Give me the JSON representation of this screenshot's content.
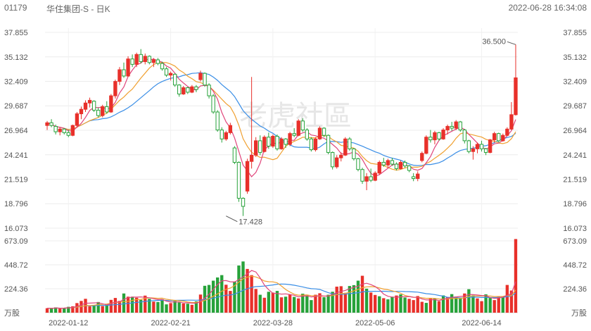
{
  "header": {
    "code": "01179",
    "name": "华住集团-S - 日K",
    "datetime": "2022-06-28 16:34:08"
  },
  "watermark": "老虎社區",
  "colors": {
    "up": "#e8302a",
    "down": "#27a23a",
    "ma5": "#e0457b",
    "ma10": "#f0a030",
    "ma20": "#3a8ee6",
    "vol_ma5": "#f0a030",
    "vol_ma10": "#3a8ee6",
    "vol_ma20": "#e0457b"
  },
  "chart_data": [
    {
      "type": "candlestick",
      "yticks": [
        "37.855",
        "35.132",
        "32.409",
        "29.687",
        "26.964",
        "24.241",
        "21.519",
        "18.796",
        "16.073"
      ],
      "ylim": [
        16.073,
        37.855
      ],
      "xticks": [
        {
          "index": 5,
          "label": "2022-01-12"
        },
        {
          "index": 29,
          "label": "2022-02-21"
        },
        {
          "index": 53,
          "label": "2022-03-28"
        },
        {
          "index": 77,
          "label": "2022-05-06"
        },
        {
          "index": 102,
          "label": "2022-06-14"
        }
      ],
      "annotations": [
        {
          "index": 110,
          "value": 36.5,
          "label": "36.500"
        },
        {
          "index": 42,
          "value": 17.428,
          "label": "17.428"
        }
      ],
      "candles": [
        {
          "o": 27.5,
          "h": 28.0,
          "l": 27.0,
          "c": 27.8
        },
        {
          "o": 27.8,
          "h": 28.2,
          "l": 27.3,
          "c": 27.5
        },
        {
          "o": 27.4,
          "h": 27.6,
          "l": 26.5,
          "c": 26.8
        },
        {
          "o": 26.8,
          "h": 27.3,
          "l": 26.4,
          "c": 27.1
        },
        {
          "o": 27.1,
          "h": 27.2,
          "l": 26.5,
          "c": 26.7
        },
        {
          "o": 26.7,
          "h": 27.0,
          "l": 26.2,
          "c": 26.4
        },
        {
          "o": 26.4,
          "h": 27.6,
          "l": 26.3,
          "c": 27.5
        },
        {
          "o": 27.5,
          "h": 29.0,
          "l": 27.3,
          "c": 28.8
        },
        {
          "o": 28.8,
          "h": 29.6,
          "l": 28.2,
          "c": 29.3
        },
        {
          "o": 29.3,
          "h": 30.3,
          "l": 29.0,
          "c": 30.0
        },
        {
          "o": 30.0,
          "h": 30.6,
          "l": 29.5,
          "c": 30.3
        },
        {
          "o": 30.2,
          "h": 30.3,
          "l": 29.0,
          "c": 29.2
        },
        {
          "o": 29.2,
          "h": 29.5,
          "l": 28.4,
          "c": 28.6
        },
        {
          "o": 28.6,
          "h": 29.8,
          "l": 28.4,
          "c": 29.6
        },
        {
          "o": 29.6,
          "h": 30.2,
          "l": 28.8,
          "c": 29.0
        },
        {
          "o": 29.0,
          "h": 31.0,
          "l": 28.9,
          "c": 30.8
        },
        {
          "o": 30.8,
          "h": 32.6,
          "l": 30.5,
          "c": 32.4
        },
        {
          "o": 32.4,
          "h": 34.0,
          "l": 32.0,
          "c": 33.7
        },
        {
          "o": 33.7,
          "h": 34.5,
          "l": 32.8,
          "c": 33.0
        },
        {
          "o": 33.0,
          "h": 35.2,
          "l": 32.9,
          "c": 34.9
        },
        {
          "o": 34.9,
          "h": 35.4,
          "l": 34.0,
          "c": 34.3
        },
        {
          "o": 34.3,
          "h": 35.6,
          "l": 34.0,
          "c": 35.4
        },
        {
          "o": 35.4,
          "h": 36.0,
          "l": 34.4,
          "c": 34.6
        },
        {
          "o": 34.6,
          "h": 35.5,
          "l": 34.3,
          "c": 35.2
        },
        {
          "o": 35.2,
          "h": 35.3,
          "l": 34.3,
          "c": 34.5
        },
        {
          "o": 34.5,
          "h": 35.0,
          "l": 34.0,
          "c": 34.8
        },
        {
          "o": 34.8,
          "h": 35.0,
          "l": 34.2,
          "c": 34.4
        },
        {
          "o": 34.4,
          "h": 34.6,
          "l": 33.6,
          "c": 33.8
        },
        {
          "o": 33.8,
          "h": 34.0,
          "l": 32.9,
          "c": 33.1
        },
        {
          "o": 33.1,
          "h": 33.5,
          "l": 32.5,
          "c": 33.3
        },
        {
          "o": 33.2,
          "h": 33.3,
          "l": 31.8,
          "c": 32.0
        },
        {
          "o": 32.0,
          "h": 32.1,
          "l": 30.7,
          "c": 31.0
        },
        {
          "o": 31.0,
          "h": 31.9,
          "l": 30.9,
          "c": 31.7
        },
        {
          "o": 31.7,
          "h": 31.8,
          "l": 31.0,
          "c": 31.2
        },
        {
          "o": 31.2,
          "h": 32.0,
          "l": 31.1,
          "c": 31.8
        },
        {
          "o": 31.8,
          "h": 32.0,
          "l": 31.2,
          "c": 31.5
        },
        {
          "o": 32.6,
          "h": 33.6,
          "l": 32.4,
          "c": 33.3
        },
        {
          "o": 33.3,
          "h": 33.4,
          "l": 31.8,
          "c": 32.0
        },
        {
          "o": 32.0,
          "h": 32.2,
          "l": 30.5,
          "c": 30.8
        },
        {
          "o": 30.8,
          "h": 31.0,
          "l": 28.8,
          "c": 29.0
        },
        {
          "o": 29.0,
          "h": 29.2,
          "l": 26.8,
          "c": 27.0
        },
        {
          "o": 27.0,
          "h": 27.3,
          "l": 25.6,
          "c": 26.0
        },
        {
          "o": 26.0,
          "h": 26.9,
          "l": 25.8,
          "c": 26.7
        },
        {
          "o": 26.7,
          "h": 27.8,
          "l": 26.5,
          "c": 27.5
        },
        {
          "o": 25.0,
          "h": 25.2,
          "l": 23.2,
          "c": 23.4
        },
        {
          "o": 23.4,
          "h": 23.5,
          "l": 19.0,
          "c": 19.4
        },
        {
          "o": 19.4,
          "h": 19.5,
          "l": 17.43,
          "c": 18.5
        },
        {
          "o": 20.2,
          "h": 23.8,
          "l": 19.9,
          "c": 23.5
        },
        {
          "o": 23.5,
          "h": 32.9,
          "l": 22.7,
          "c": 24.2
        },
        {
          "o": 24.2,
          "h": 26.2,
          "l": 24.0,
          "c": 25.8
        },
        {
          "o": 25.8,
          "h": 26.4,
          "l": 24.2,
          "c": 24.5
        },
        {
          "o": 24.6,
          "h": 26.4,
          "l": 24.5,
          "c": 26.2
        },
        {
          "o": 26.2,
          "h": 26.7,
          "l": 24.9,
          "c": 25.2
        },
        {
          "o": 25.2,
          "h": 26.5,
          "l": 25.0,
          "c": 26.3
        },
        {
          "o": 26.3,
          "h": 26.5,
          "l": 24.7,
          "c": 24.9
        },
        {
          "o": 24.9,
          "h": 26.2,
          "l": 24.8,
          "c": 26.0
        },
        {
          "o": 26.0,
          "h": 26.1,
          "l": 25.0,
          "c": 25.4
        },
        {
          "o": 25.4,
          "h": 26.8,
          "l": 25.2,
          "c": 26.6
        },
        {
          "o": 26.6,
          "h": 27.2,
          "l": 26.2,
          "c": 26.4
        },
        {
          "o": 26.4,
          "h": 28.2,
          "l": 26.3,
          "c": 28.0
        },
        {
          "o": 28.0,
          "h": 28.3,
          "l": 26.8,
          "c": 27.0
        },
        {
          "o": 27.0,
          "h": 27.2,
          "l": 25.8,
          "c": 26.0
        },
        {
          "o": 26.0,
          "h": 26.2,
          "l": 24.6,
          "c": 24.8
        },
        {
          "o": 24.8,
          "h": 26.2,
          "l": 24.6,
          "c": 26.0
        },
        {
          "o": 26.0,
          "h": 27.4,
          "l": 25.9,
          "c": 27.2
        },
        {
          "o": 27.2,
          "h": 27.3,
          "l": 26.2,
          "c": 26.4
        },
        {
          "o": 26.4,
          "h": 26.5,
          "l": 24.3,
          "c": 24.5
        },
        {
          "o": 24.5,
          "h": 24.6,
          "l": 22.6,
          "c": 22.9
        },
        {
          "o": 22.9,
          "h": 24.2,
          "l": 22.7,
          "c": 23.9
        },
        {
          "o": 23.9,
          "h": 24.5,
          "l": 23.5,
          "c": 24.2
        },
        {
          "o": 24.2,
          "h": 26.2,
          "l": 24.1,
          "c": 26.0
        },
        {
          "o": 26.0,
          "h": 26.2,
          "l": 24.7,
          "c": 24.9
        },
        {
          "o": 24.9,
          "h": 25.0,
          "l": 23.6,
          "c": 23.8
        },
        {
          "o": 23.8,
          "h": 23.9,
          "l": 22.4,
          "c": 22.6
        },
        {
          "o": 22.6,
          "h": 22.8,
          "l": 21.0,
          "c": 21.3
        },
        {
          "o": 21.3,
          "h": 22.2,
          "l": 20.3,
          "c": 21.8
        },
        {
          "o": 21.8,
          "h": 22.7,
          "l": 21.2,
          "c": 21.4
        },
        {
          "o": 21.4,
          "h": 22.4,
          "l": 21.3,
          "c": 22.2
        },
        {
          "o": 22.2,
          "h": 23.6,
          "l": 22.0,
          "c": 23.4
        },
        {
          "o": 23.4,
          "h": 23.9,
          "l": 22.9,
          "c": 23.1
        },
        {
          "o": 23.1,
          "h": 23.8,
          "l": 22.8,
          "c": 23.6
        },
        {
          "o": 23.6,
          "h": 23.9,
          "l": 23.0,
          "c": 23.2
        },
        {
          "o": 23.2,
          "h": 23.4,
          "l": 22.5,
          "c": 22.7
        },
        {
          "o": 22.7,
          "h": 23.6,
          "l": 22.6,
          "c": 23.4
        },
        {
          "o": 23.4,
          "h": 23.6,
          "l": 22.8,
          "c": 23.0
        },
        {
          "o": 23.0,
          "h": 23.1,
          "l": 22.3,
          "c": 22.5
        },
        {
          "o": 21.8,
          "h": 22.2,
          "l": 21.3,
          "c": 21.6
        },
        {
          "o": 21.6,
          "h": 22.4,
          "l": 21.3,
          "c": 22.1
        },
        {
          "o": 23.6,
          "h": 24.6,
          "l": 23.4,
          "c": 24.4
        },
        {
          "o": 24.4,
          "h": 26.4,
          "l": 24.3,
          "c": 26.2
        },
        {
          "o": 26.2,
          "h": 27.0,
          "l": 25.6,
          "c": 25.9
        },
        {
          "o": 25.9,
          "h": 26.9,
          "l": 25.4,
          "c": 26.7
        },
        {
          "o": 26.7,
          "h": 26.8,
          "l": 25.8,
          "c": 26.0
        },
        {
          "o": 26.0,
          "h": 27.2,
          "l": 25.9,
          "c": 27.0
        },
        {
          "o": 27.0,
          "h": 27.6,
          "l": 26.5,
          "c": 27.4
        },
        {
          "o": 27.4,
          "h": 27.9,
          "l": 26.9,
          "c": 27.2
        },
        {
          "o": 27.2,
          "h": 28.1,
          "l": 27.0,
          "c": 27.9
        },
        {
          "o": 27.9,
          "h": 28.0,
          "l": 26.8,
          "c": 27.0
        },
        {
          "o": 27.0,
          "h": 27.1,
          "l": 25.5,
          "c": 25.8
        },
        {
          "o": 25.8,
          "h": 25.9,
          "l": 24.4,
          "c": 24.6
        },
        {
          "o": 24.6,
          "h": 25.2,
          "l": 23.7,
          "c": 24.9
        },
        {
          "o": 24.9,
          "h": 25.6,
          "l": 24.4,
          "c": 25.4
        },
        {
          "o": 25.4,
          "h": 25.8,
          "l": 24.6,
          "c": 24.9
        },
        {
          "o": 24.9,
          "h": 25.0,
          "l": 24.2,
          "c": 24.5
        },
        {
          "o": 24.5,
          "h": 26.0,
          "l": 24.4,
          "c": 25.9
        },
        {
          "o": 25.9,
          "h": 26.8,
          "l": 25.6,
          "c": 26.6
        },
        {
          "o": 26.6,
          "h": 26.7,
          "l": 25.6,
          "c": 25.8
        },
        {
          "o": 25.8,
          "h": 26.6,
          "l": 25.7,
          "c": 26.4
        },
        {
          "o": 26.4,
          "h": 27.3,
          "l": 26.3,
          "c": 27.1
        },
        {
          "o": 27.1,
          "h": 30.1,
          "l": 27.0,
          "c": 28.7
        },
        {
          "o": 28.7,
          "h": 36.5,
          "l": 28.6,
          "c": 32.8
        }
      ]
    },
    {
      "type": "bar",
      "title": "",
      "yticks": [
        "673.09",
        "448.72",
        "224.36",
        "万股"
      ],
      "ylim": [
        0,
        673.09
      ],
      "unit": "万股",
      "volumes": [
        42,
        40,
        50,
        38,
        46,
        55,
        60,
        90,
        110,
        130,
        60,
        68,
        100,
        62,
        76,
        120,
        138,
        110,
        180,
        150,
        150,
        140,
        120,
        160,
        130,
        104,
        100,
        126,
        78,
        90,
        110,
        96,
        86,
        84,
        74,
        106,
        170,
        252,
        260,
        300,
        330,
        352,
        262,
        204,
        292,
        442,
        480,
        410,
        352,
        222,
        168,
        140,
        196,
        188,
        204,
        144,
        150,
        168,
        148,
        134,
        178,
        162,
        118,
        168,
        182,
        145,
        168,
        196,
        244,
        248,
        186,
        250,
        258,
        300,
        346,
        225,
        189,
        166,
        154,
        136,
        125,
        150,
        161,
        172,
        142,
        130,
        118,
        156,
        102,
        92,
        132,
        132,
        108,
        162,
        144,
        174,
        150,
        132,
        180,
        220,
        162,
        134,
        108,
        172,
        138,
        118,
        152,
        148,
        260,
        208,
        690
      ],
      "up": [
        1,
        0,
        0,
        1,
        0,
        0,
        1,
        1,
        1,
        1,
        1,
        0,
        0,
        1,
        0,
        1,
        1,
        1,
        0,
        1,
        0,
        1,
        0,
        1,
        0,
        1,
        0,
        0,
        0,
        1,
        0,
        0,
        1,
        0,
        1,
        0,
        1,
        0,
        0,
        0,
        0,
        0,
        1,
        1,
        0,
        0,
        0,
        1,
        1,
        1,
        0,
        1,
        0,
        1,
        0,
        1,
        0,
        1,
        0,
        1,
        0,
        0,
        0,
        1,
        1,
        0,
        0,
        0,
        1,
        1,
        1,
        0,
        0,
        0,
        1,
        0,
        1,
        1,
        0,
        1,
        0,
        0,
        1,
        0,
        0,
        1,
        1,
        1,
        1,
        0,
        1,
        0,
        1,
        0,
        1,
        0,
        0,
        0,
        1,
        0,
        0,
        1,
        1,
        0,
        0,
        1,
        1,
        0,
        1,
        1,
        1
      ]
    }
  ]
}
